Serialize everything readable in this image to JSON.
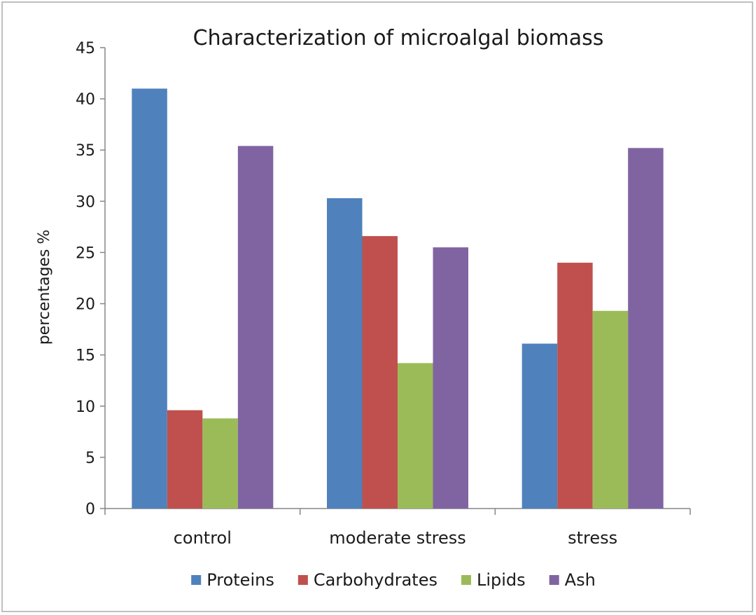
{
  "chart_data": {
    "type": "bar",
    "title": "Characterization of microalgal biomass",
    "xlabel": "",
    "ylabel": "percentages %",
    "ylim": [
      0,
      45
    ],
    "yticks": [
      0,
      5,
      10,
      15,
      20,
      25,
      30,
      35,
      40,
      45
    ],
    "categories": [
      "control",
      "moderate stress",
      "stress"
    ],
    "series": [
      {
        "name": "Proteins",
        "color": "#4f81bd",
        "values": [
          41.0,
          30.3,
          16.1
        ]
      },
      {
        "name": "Carbohydrates",
        "color": "#c0504d",
        "values": [
          9.6,
          26.6,
          24.0
        ]
      },
      {
        "name": "Lipids",
        "color": "#9bbb59",
        "values": [
          8.8,
          14.2,
          19.3
        ]
      },
      {
        "name": "Ash",
        "color": "#8064a2",
        "values": [
          35.4,
          25.5,
          35.2
        ]
      }
    ],
    "grid": false,
    "legend": "bottom"
  }
}
